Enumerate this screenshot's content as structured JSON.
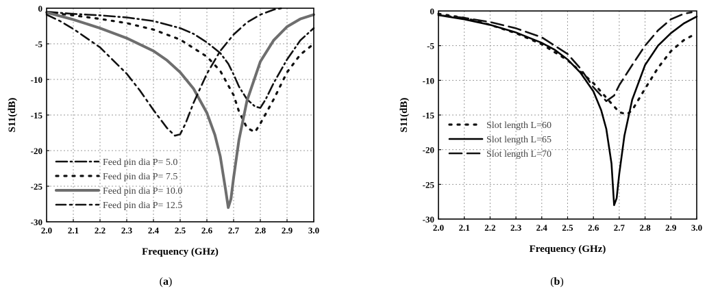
{
  "chart_data": [
    {
      "type": "line",
      "caption_prefix": "(",
      "caption_letter": "a",
      "caption_suffix": ")",
      "xlabel": "Frequency (GHz)",
      "ylabel": "S11(dB)",
      "xlim": [
        2.0,
        3.0
      ],
      "ylim": [
        -30,
        0
      ],
      "xticks": [
        "2.0",
        "2.1",
        "2.2",
        "2.3",
        "2.4",
        "2.5",
        "2.6",
        "2.7",
        "2.8",
        "2.9",
        "3.0"
      ],
      "yticks": [
        "0",
        "-5",
        "-10",
        "-15",
        "-20",
        "-25",
        "-30"
      ],
      "grid": true,
      "legend_position": "bottom-left",
      "series": [
        {
          "name": "Feed pin dia P= 5.0",
          "style": "dashdot-long",
          "color": "#111111",
          "x": [
            2.0,
            2.1,
            2.2,
            2.3,
            2.4,
            2.5,
            2.55,
            2.6,
            2.65,
            2.68,
            2.7,
            2.72,
            2.75,
            2.78,
            2.8,
            2.82,
            2.85,
            2.9,
            2.95,
            3.0
          ],
          "y": [
            -0.5,
            -0.8,
            -1.0,
            -1.3,
            -1.8,
            -2.8,
            -3.6,
            -4.8,
            -6.3,
            -7.8,
            -9.3,
            -11.0,
            -12.8,
            -13.8,
            -14.0,
            -12.8,
            -10.5,
            -7.2,
            -4.5,
            -2.8
          ]
        },
        {
          "name": "Feed pin dia P= 7.5",
          "style": "dotted",
          "color": "#111111",
          "x": [
            2.0,
            2.1,
            2.2,
            2.3,
            2.4,
            2.5,
            2.6,
            2.65,
            2.7,
            2.72,
            2.75,
            2.78,
            2.8,
            2.85,
            2.9,
            2.95,
            3.0
          ],
          "y": [
            -0.6,
            -1.0,
            -1.5,
            -2.1,
            -3.0,
            -4.4,
            -6.8,
            -8.8,
            -12.2,
            -14.5,
            -16.8,
            -17.4,
            -16.2,
            -12.8,
            -9.0,
            -6.5,
            -5.0
          ]
        },
        {
          "name": "Feed pin dia P= 10.0",
          "style": "solid-thick",
          "color": "#6e6e6e",
          "x": [
            2.0,
            2.1,
            2.2,
            2.3,
            2.4,
            2.45,
            2.5,
            2.55,
            2.6,
            2.63,
            2.65,
            2.67,
            2.68,
            2.69,
            2.7,
            2.72,
            2.75,
            2.8,
            2.85,
            2.9,
            2.95,
            3.0
          ],
          "y": [
            -0.6,
            -1.6,
            -2.8,
            -4.2,
            -6.0,
            -7.3,
            -9.0,
            -11.3,
            -14.7,
            -17.8,
            -20.8,
            -25.5,
            -28.0,
            -26.8,
            -23.8,
            -18.5,
            -13.0,
            -7.5,
            -4.5,
            -2.6,
            -1.5,
            -0.9
          ]
        },
        {
          "name": "Feed pin dia P= 12.5",
          "style": "dashdot",
          "color": "#111111",
          "x": [
            2.0,
            2.05,
            2.1,
            2.2,
            2.3,
            2.35,
            2.4,
            2.45,
            2.48,
            2.5,
            2.52,
            2.55,
            2.6,
            2.65,
            2.7,
            2.75,
            2.8,
            2.85,
            2.88
          ],
          "y": [
            -0.9,
            -1.8,
            -2.9,
            -5.5,
            -9.2,
            -11.6,
            -14.3,
            -16.8,
            -17.9,
            -17.7,
            -16.2,
            -13.3,
            -9.2,
            -6.0,
            -3.7,
            -2.0,
            -0.9,
            -0.2,
            0.0
          ]
        }
      ]
    },
    {
      "type": "line",
      "caption_prefix": "(",
      "caption_letter": "b",
      "caption_suffix": ")",
      "xlabel": "Frequency (GHz)",
      "ylabel": "S11(dB)",
      "xlim": [
        2.0,
        3.0
      ],
      "ylim": [
        -30,
        0
      ],
      "xticks": [
        "2.0",
        "2.1",
        "2.2",
        "2.3",
        "2.4",
        "2.5",
        "2.6",
        "2.7",
        "2.8",
        "2.9",
        "3.0"
      ],
      "yticks": [
        "0",
        "-5",
        "-10",
        "-15",
        "-20",
        "-25",
        "-30"
      ],
      "grid": true,
      "legend_position": "center-left",
      "series": [
        {
          "name": "Slot length L=60",
          "style": "dotted",
          "color": "#111111",
          "x": [
            2.0,
            2.1,
            2.2,
            2.3,
            2.4,
            2.5,
            2.6,
            2.65,
            2.7,
            2.73,
            2.75,
            2.8,
            2.85,
            2.9,
            2.95,
            2.98
          ],
          "y": [
            -0.4,
            -1.0,
            -2.0,
            -3.2,
            -4.8,
            -7.1,
            -10.4,
            -12.5,
            -14.6,
            -14.9,
            -14.3,
            -11.2,
            -8.2,
            -5.8,
            -4.2,
            -3.6
          ]
        },
        {
          "name": "Slot length L=65",
          "style": "solid",
          "color": "#000000",
          "x": [
            2.0,
            2.1,
            2.2,
            2.3,
            2.4,
            2.45,
            2.5,
            2.55,
            2.6,
            2.63,
            2.65,
            2.67,
            2.68,
            2.69,
            2.7,
            2.72,
            2.75,
            2.8,
            2.85,
            2.9,
            2.95,
            3.0
          ],
          "y": [
            -0.6,
            -1.2,
            -2.0,
            -3.1,
            -4.6,
            -5.6,
            -7.0,
            -8.9,
            -11.6,
            -14.3,
            -17.0,
            -22.0,
            -28.0,
            -27.0,
            -23.5,
            -18.0,
            -12.8,
            -7.8,
            -5.0,
            -3.2,
            -1.8,
            -0.8
          ]
        },
        {
          "name": "Slot length L=70",
          "style": "dashed-long",
          "color": "#111111",
          "x": [
            2.0,
            2.1,
            2.2,
            2.3,
            2.4,
            2.5,
            2.55,
            2.6,
            2.65,
            2.68,
            2.7,
            2.75,
            2.8,
            2.85,
            2.9,
            2.95,
            2.98
          ],
          "y": [
            -0.6,
            -1.0,
            -1.6,
            -2.5,
            -3.8,
            -6.2,
            -8.3,
            -11.0,
            -13.0,
            -12.2,
            -10.7,
            -7.8,
            -5.0,
            -2.8,
            -1.2,
            -0.4,
            -0.2
          ]
        }
      ]
    }
  ]
}
